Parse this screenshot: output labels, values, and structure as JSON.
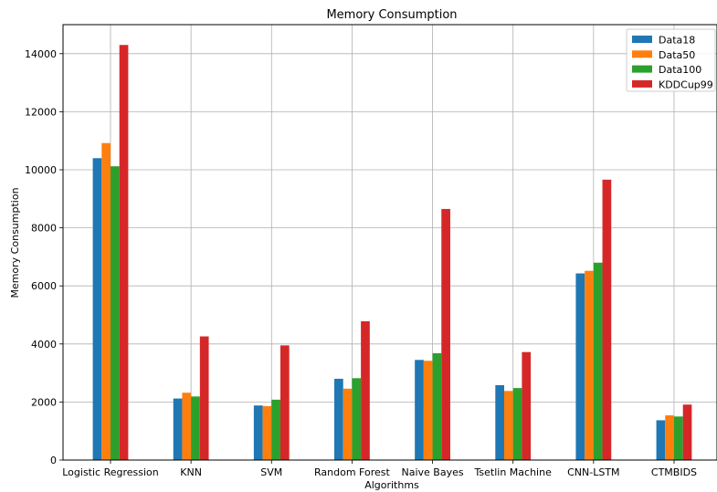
{
  "chart_data": {
    "type": "bar",
    "title": "Memory Consumption",
    "xlabel": "Algorithms",
    "ylabel": "Memory Consumption",
    "categories": [
      "Logistic Regression",
      "KNN",
      "SVM",
      "Random Forest",
      "Naive Bayes",
      "Tsetlin Machine",
      "CNN-LSTM",
      "CTMBIDS"
    ],
    "series": [
      {
        "name": "Data18",
        "color": "#1f77b4",
        "values": [
          10400,
          2120,
          1880,
          2800,
          3450,
          2580,
          6430,
          1370
        ]
      },
      {
        "name": "Data50",
        "color": "#ff7f0e",
        "values": [
          10920,
          2320,
          1860,
          2460,
          3420,
          2380,
          6520,
          1540
        ]
      },
      {
        "name": "Data100",
        "color": "#2ca02c",
        "values": [
          10120,
          2190,
          2080,
          2820,
          3680,
          2480,
          6800,
          1500
        ]
      },
      {
        "name": "KDDCup99",
        "color": "#d62728",
        "values": [
          14300,
          4260,
          3950,
          4780,
          8650,
          3720,
          9660,
          1910
        ]
      }
    ],
    "ylim": [
      0,
      15000
    ],
    "yticks": [
      0,
      2000,
      4000,
      6000,
      8000,
      10000,
      12000,
      14000
    ],
    "grid": true,
    "legend_position": "top-right"
  }
}
